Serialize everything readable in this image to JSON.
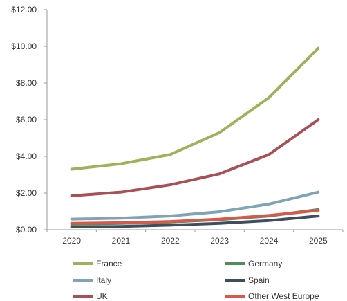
{
  "chart_data": {
    "type": "line",
    "title": "",
    "xlabel": "",
    "ylabel": "",
    "x": [
      "2020",
      "2021",
      "2022",
      "2023",
      "2024",
      "2025"
    ],
    "ylim": [
      0,
      12
    ],
    "yticks": [
      "$0.00",
      "$2.00",
      "$4.00",
      "$6.00",
      "$8.00",
      "$10.00",
      "$12.00"
    ],
    "grid": false,
    "legend_position": "bottom",
    "series": [
      {
        "name": "France",
        "color": "#9CB35C",
        "values": [
          3.3,
          3.6,
          4.1,
          5.3,
          7.2,
          9.9
        ]
      },
      {
        "name": "Germany",
        "color": "#4E8E5C",
        "values": [
          0.3,
          0.35,
          0.42,
          0.55,
          0.75,
          1.1
        ]
      },
      {
        "name": "Italy",
        "color": "#7FA4B6",
        "values": [
          0.58,
          0.63,
          0.75,
          0.98,
          1.4,
          2.05
        ]
      },
      {
        "name": "Spain",
        "color": "#3F4E5E",
        "values": [
          0.15,
          0.18,
          0.25,
          0.35,
          0.5,
          0.75
        ]
      },
      {
        "name": "UK",
        "color": "#A94F55",
        "values": [
          1.85,
          2.05,
          2.45,
          3.05,
          4.1,
          6.0
        ]
      },
      {
        "name": "Other West Europe",
        "color": "#D9584A",
        "values": [
          0.35,
          0.38,
          0.45,
          0.58,
          0.78,
          1.05
        ]
      }
    ]
  }
}
